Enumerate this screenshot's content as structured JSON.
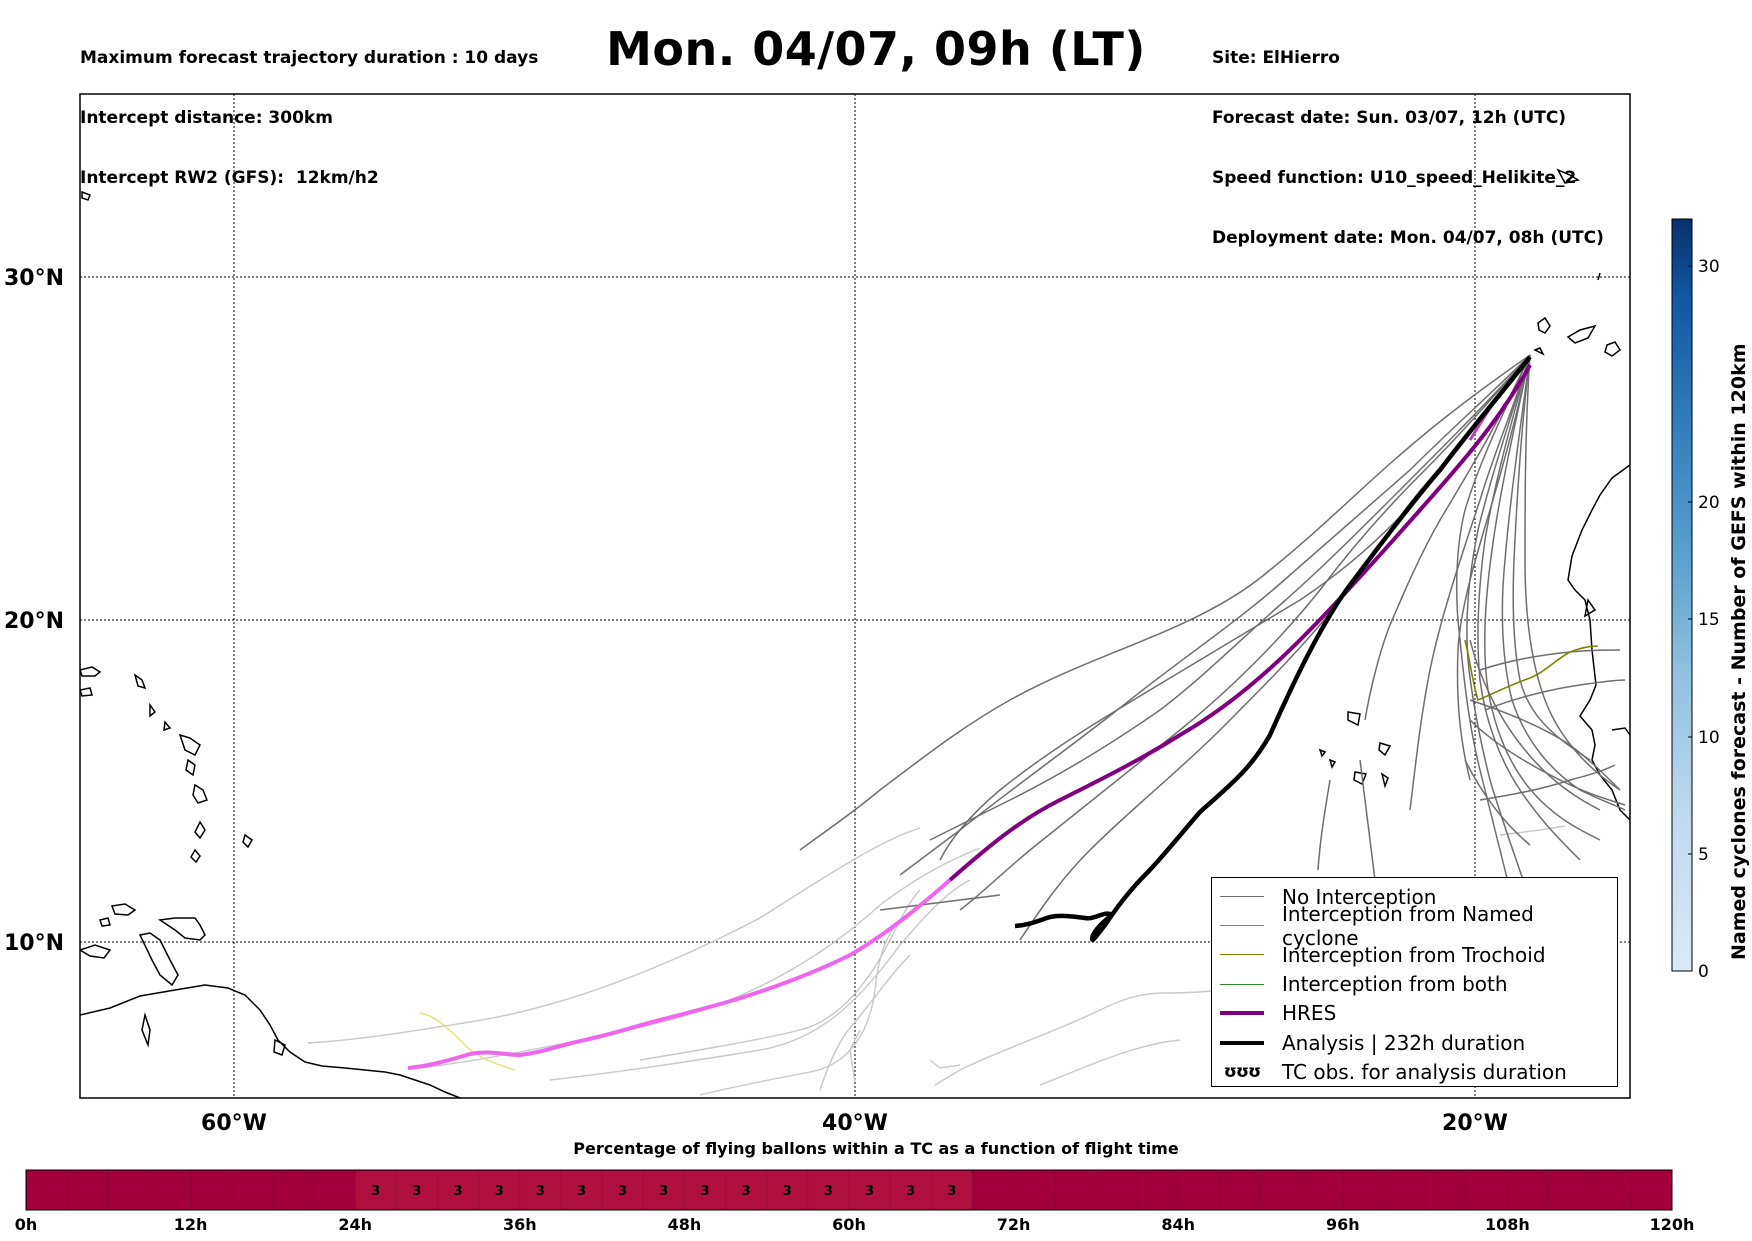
{
  "header": {
    "left_lines": [
      "Maximum forecast trajectory duration : 10 days",
      "Intercept distance: 300km",
      "Intercept RW2 (GFS):  12km/h2"
    ],
    "title": "Mon. 04/07, 09h (LT)",
    "right_lines": [
      "Site: ElHierro",
      "Forecast date: Sun. 03/07, 12h (UTC)",
      "Speed function: U10_speed_Helikite_2",
      "Deployment date: Mon. 04/07, 08h (UTC)"
    ]
  },
  "map": {
    "lat_labels": [
      "30°N",
      "20°N",
      "10°N"
    ],
    "lon_labels": [
      "60°W",
      "40°W",
      "20°W"
    ]
  },
  "legend": {
    "items": [
      {
        "label": "No Interception",
        "color": "#707070"
      },
      {
        "label": "Interception from Named cyclone",
        "color": "#e8622c"
      },
      {
        "label": "Interception from Trochoid",
        "color": "#808000"
      },
      {
        "label": "Interception from both",
        "color": "#2e8b2e"
      },
      {
        "label": "HRES",
        "color": "#800080"
      },
      {
        "label": "Analysis | 232h duration",
        "color": "#000000"
      },
      {
        "label": "TC obs. for analysis duration",
        "symbol": "ʊʊʊ"
      }
    ]
  },
  "colorbar": {
    "label": "Named cyclones forecast - Number of GEFS within 120km",
    "ticks": [
      "0",
      "5",
      "10",
      "15",
      "20",
      "30"
    ],
    "color_low": "#dbe9f6",
    "color_high": "#08306b"
  },
  "timebar": {
    "title": "Percentage of flying ballons within a TC as a function of flight time",
    "ticks": [
      "0h",
      "12h",
      "24h",
      "36h",
      "48h",
      "60h",
      "72h",
      "84h",
      "96h",
      "108h",
      "120h"
    ],
    "cell_values": [
      "3",
      "3",
      "3",
      "3",
      "3",
      "3",
      "3",
      "3",
      "3",
      "3",
      "3",
      "3",
      "3",
      "3",
      "3"
    ],
    "bar_color": "#a1003c",
    "highlight_color": "#b01040"
  }
}
